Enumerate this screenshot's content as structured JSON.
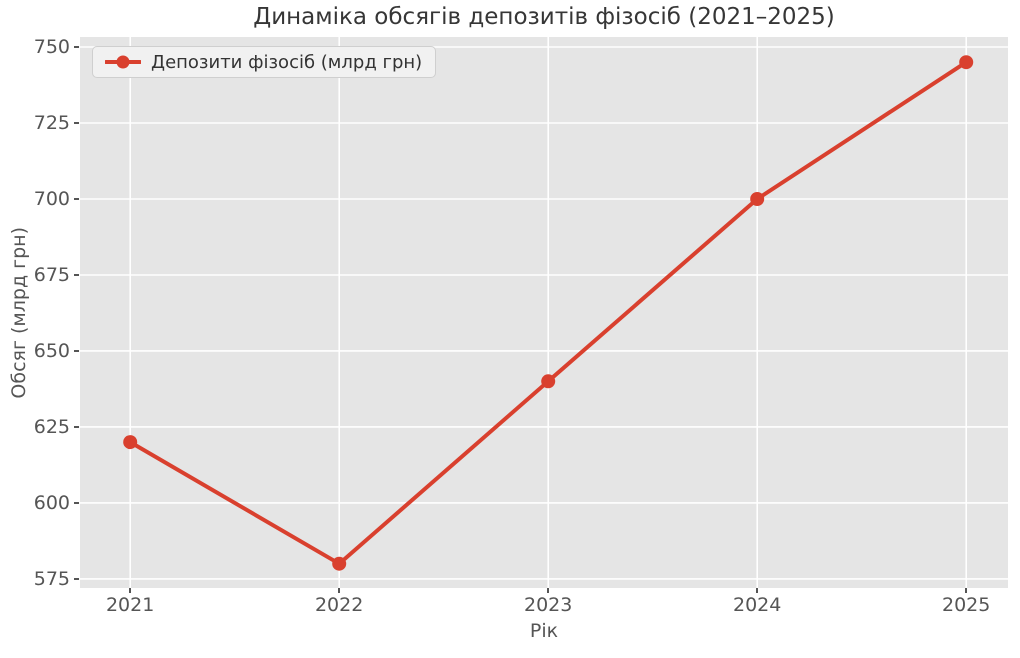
{
  "chart_data": {
    "type": "line",
    "title": "Динаміка обсягів депозитів фізосіб (2021–2025)",
    "xlabel": "Рік",
    "ylabel": "Обсяг (млрд грн)",
    "x": [
      2021,
      2022,
      2023,
      2024,
      2025
    ],
    "xtick_labels": [
      "2021",
      "2022",
      "2023",
      "2024",
      "2025"
    ],
    "yticks": [
      575,
      600,
      625,
      650,
      675,
      700,
      725,
      750
    ],
    "series": [
      {
        "name": "Депозити фізосіб (млрд грн)",
        "values": [
          620,
          580,
          640,
          700,
          745
        ],
        "color": "#d9402e",
        "marker": "circle",
        "linewidth": 4,
        "markersize": 7
      }
    ],
    "xlim": [
      2020.76,
      2025.2
    ],
    "ylim": [
      572,
      753.3
    ],
    "grid": true,
    "legend_position": "upper left",
    "style": {
      "plot_bg": "#e5e5e5",
      "grid_color": "#ffffff",
      "grid_linewidth": 1.6,
      "tick_color": "#555555",
      "tick_label_color": "#555555",
      "axis_label_color": "#555555",
      "title_color": "#363636",
      "legend_bg": "#f1f1f1",
      "legend_border": "#cfcfcf",
      "legend_text_color": "#333333",
      "figure_bg": "#ffffff"
    }
  }
}
